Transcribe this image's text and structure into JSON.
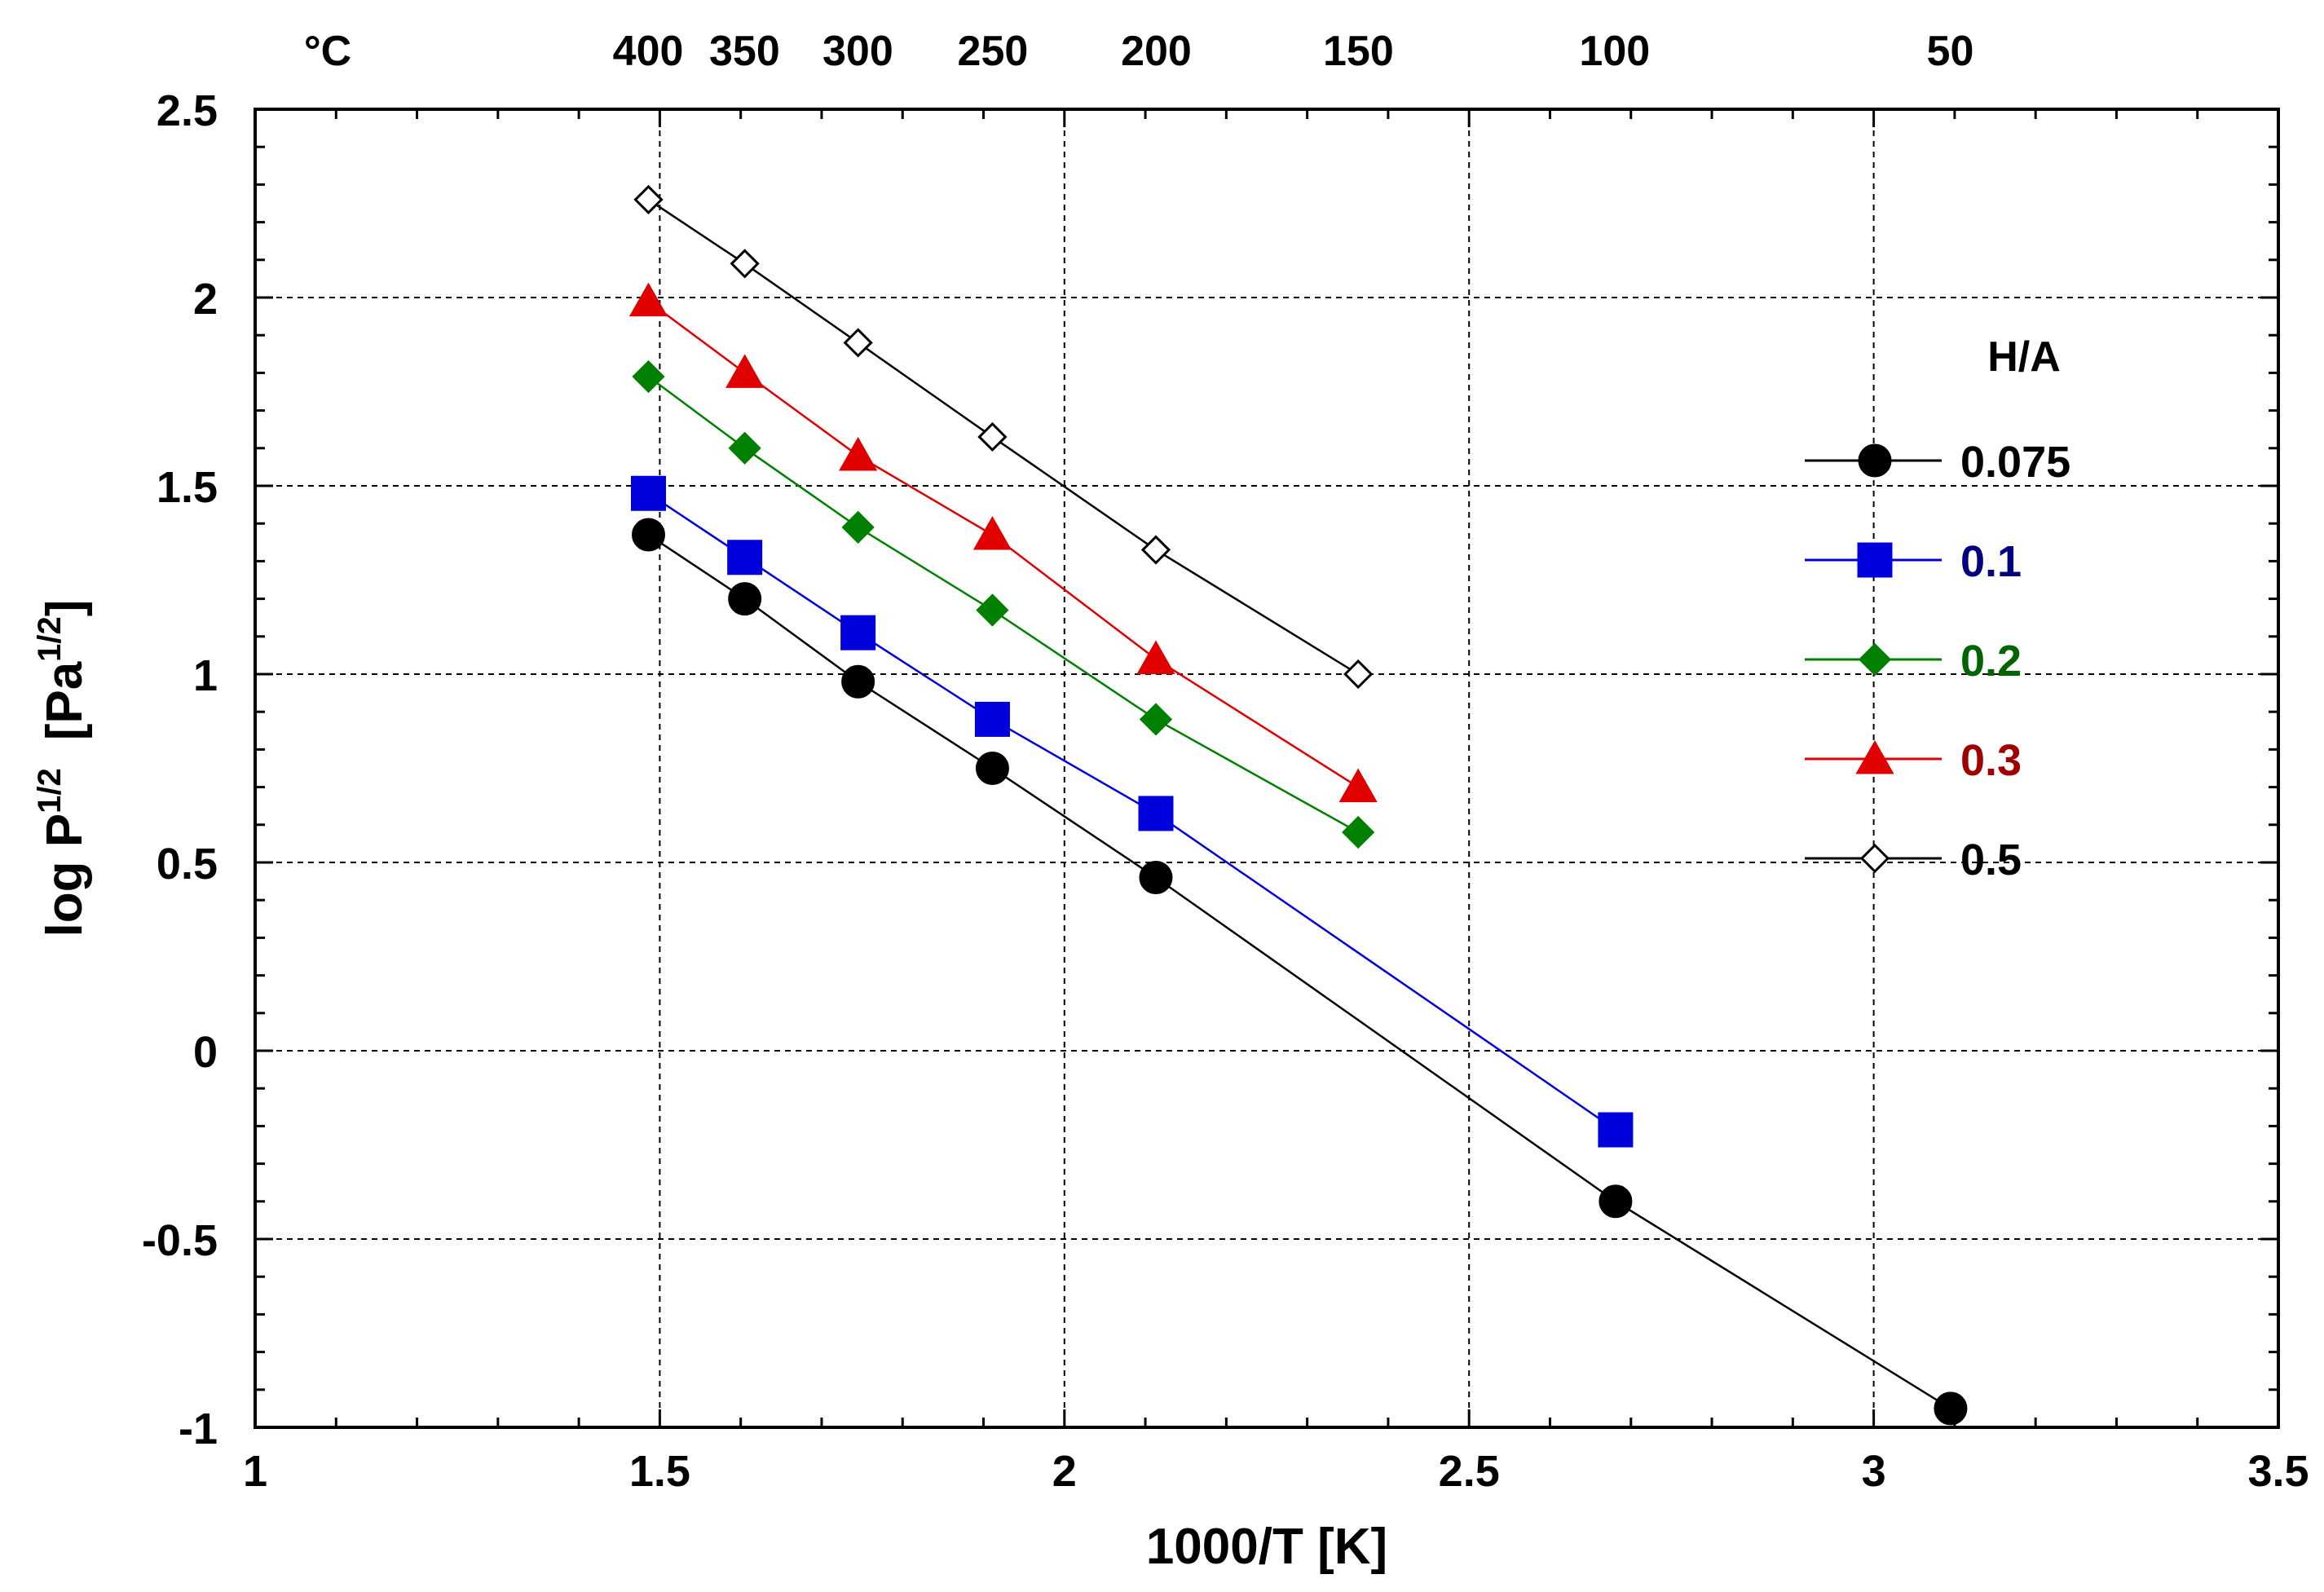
{
  "chart_data": {
    "type": "line",
    "title": "",
    "xlabel": "1000/T  [K]",
    "ylabel": "log P",
    "ylabel_superscript": "1/2",
    "ylabel_unit": "[Pa",
    "ylabel_unit_superscript": "1/2",
    "ylabel_unit_close": "]",
    "xlim": [
      1,
      3.5
    ],
    "ylim": [
      -1,
      2.5
    ],
    "grid": true,
    "x_ticks": [
      1,
      1.5,
      2,
      2.5,
      3,
      3.5
    ],
    "x_tick_labels": [
      "1",
      "1.5",
      "2",
      "2.5",
      "3",
      "3.5"
    ],
    "y_ticks": [
      -1,
      -0.5,
      0,
      0.5,
      1,
      1.5,
      2,
      2.5
    ],
    "y_tick_labels": [
      "-1",
      "-0.5",
      "0",
      "0.5",
      "1",
      "1.5",
      "2",
      "2.5"
    ],
    "top_axis_unit": "°C",
    "top_axis_ticks": [
      {
        "label": "400",
        "celsius": 400
      },
      {
        "label": "350",
        "celsius": 350
      },
      {
        "label": "300",
        "celsius": 300
      },
      {
        "label": "250",
        "celsius": 250
      },
      {
        "label": "200",
        "celsius": 200
      },
      {
        "label": "150",
        "celsius": 150
      },
      {
        "label": "100",
        "celsius": 100
      },
      {
        "label": "50",
        "celsius": 50
      }
    ],
    "legend_title": "H/A",
    "legend_position": "right",
    "series": [
      {
        "name": "0.075",
        "color": "#000000",
        "label_color": "#000000",
        "marker": "circle",
        "filled": true,
        "x": [
          1.486,
          1.605,
          1.745,
          1.911,
          2.113,
          2.681,
          3.095
        ],
        "y": [
          1.37,
          1.2,
          0.98,
          0.75,
          0.46,
          -0.4,
          -0.95
        ]
      },
      {
        "name": "0.1",
        "color": "#0000dd",
        "label_color": "#000080",
        "marker": "square",
        "filled": true,
        "x": [
          1.486,
          1.605,
          1.745,
          1.911,
          2.113,
          2.681
        ],
        "y": [
          1.48,
          1.31,
          1.11,
          0.88,
          0.63,
          -0.21
        ]
      },
      {
        "name": "0.2",
        "color": "#008000",
        "label_color": "#006400",
        "marker": "diamond",
        "filled": true,
        "x": [
          1.486,
          1.605,
          1.745,
          1.911,
          2.113,
          2.363
        ],
        "y": [
          1.79,
          1.6,
          1.39,
          1.17,
          0.88,
          0.58
        ]
      },
      {
        "name": "0.3",
        "color": "#e00000",
        "label_color": "#a00000",
        "marker": "triangle",
        "filled": true,
        "x": [
          1.486,
          1.605,
          1.745,
          1.911,
          2.113,
          2.363
        ],
        "y": [
          1.99,
          1.8,
          1.58,
          1.37,
          1.04,
          0.7
        ]
      },
      {
        "name": "0.5",
        "color": "#000000",
        "label_color": "#000000",
        "marker": "diamond",
        "filled": false,
        "x": [
          1.486,
          1.605,
          1.745,
          1.911,
          2.113,
          2.363
        ],
        "y": [
          2.26,
          2.09,
          1.88,
          1.63,
          1.33,
          1.0
        ]
      }
    ]
  }
}
